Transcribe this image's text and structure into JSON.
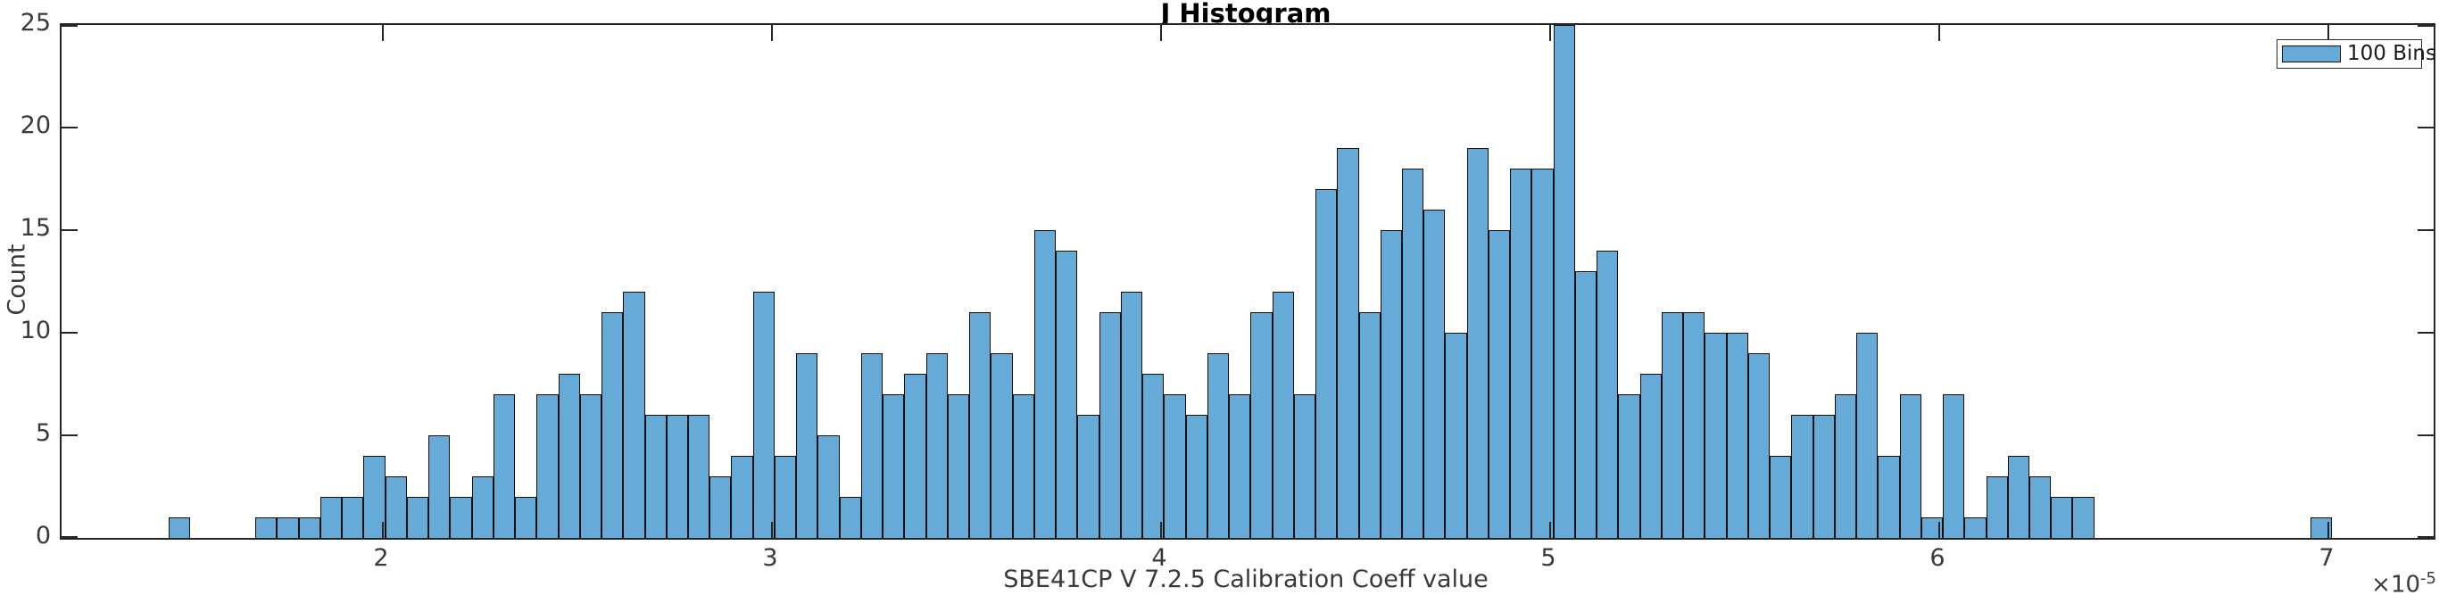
{
  "figure": {
    "title": "J Histogram"
  },
  "axes": {
    "x": {
      "label": "SBE41CP V 7.2.5 Calibration Coeff value",
      "ticks": [
        2,
        3,
        4,
        5,
        6,
        7
      ],
      "multiplier_base": "×10",
      "multiplier_exponent": "-5",
      "min": 1.1743,
      "max": 7.2706
    },
    "y": {
      "label": "Count",
      "ticks": [
        0,
        5,
        10,
        15,
        20,
        25
      ],
      "min": 0,
      "max": 25
    }
  },
  "legend": {
    "label": "100 Bins"
  },
  "colors": {
    "bar_fill": "#66AAD7",
    "bar_edge": "#0d0d0d",
    "frame": "#262626",
    "text": "#3a3a3a",
    "title": "#000000"
  },
  "chart_data": {
    "type": "bar",
    "subtype": "histogram",
    "title": "J Histogram",
    "xlabel": "SBE41CP V 7.2.5 Calibration Coeff value",
    "ylabel": "Count",
    "legend_entries": [
      "100 Bins"
    ],
    "num_bins": 100,
    "x_units": "1e-5",
    "first_bin_left_edge": 1.45,
    "bin_width": 0.0556,
    "xlim": [
      1.1743,
      7.2706
    ],
    "ylim": [
      0,
      25
    ],
    "grid": false,
    "legend_position": "top-right",
    "counts": [
      1,
      0,
      0,
      0,
      1,
      1,
      1,
      2,
      2,
      4,
      3,
      2,
      5,
      2,
      3,
      7,
      2,
      7,
      8,
      7,
      11,
      12,
      6,
      6,
      6,
      3,
      4,
      12,
      4,
      9,
      5,
      2,
      9,
      7,
      8,
      9,
      7,
      11,
      9,
      7,
      15,
      14,
      6,
      11,
      12,
      8,
      7,
      6,
      9,
      7,
      11,
      12,
      7,
      17,
      19,
      11,
      15,
      18,
      16,
      10,
      19,
      15,
      18,
      18,
      25,
      13,
      14,
      7,
      8,
      11,
      11,
      10,
      10,
      9,
      4,
      6,
      6,
      7,
      10,
      4,
      7,
      1,
      7,
      1,
      3,
      4,
      3,
      2,
      2,
      0,
      0,
      0,
      0,
      0,
      0,
      0,
      0,
      0,
      0,
      1
    ]
  }
}
